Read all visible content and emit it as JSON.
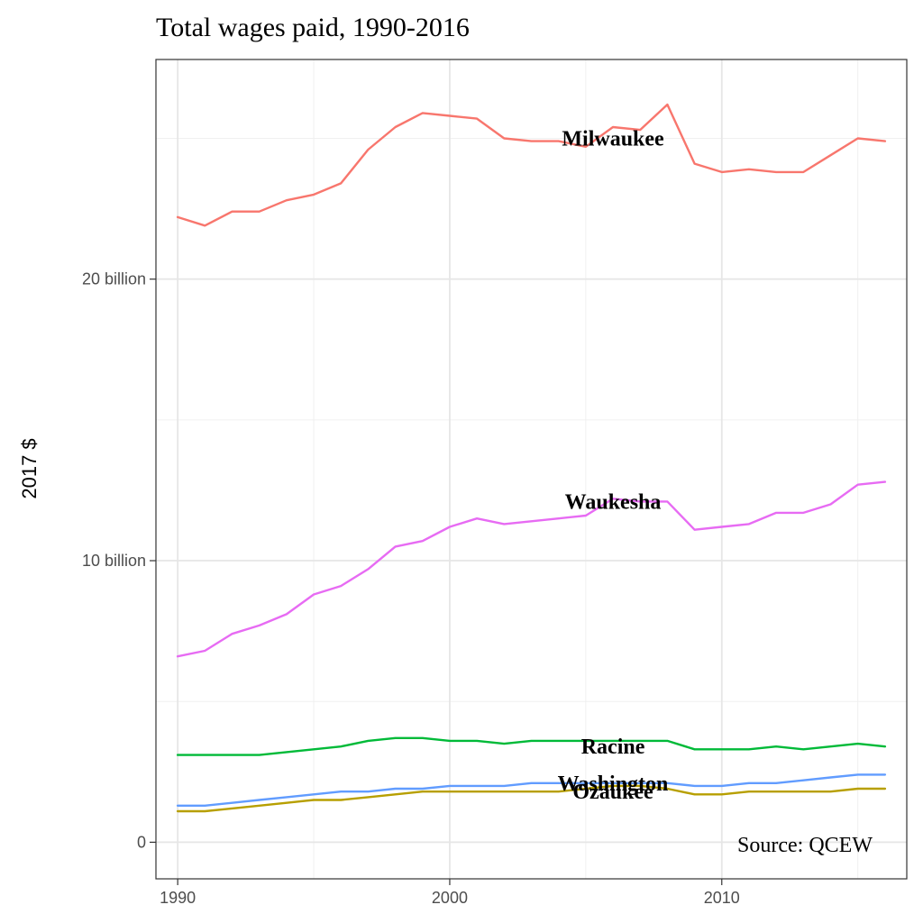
{
  "chart_data": {
    "type": "line",
    "title": "Total wages paid, 1990-2016",
    "xlabel": "",
    "ylabel": "2017 $",
    "xlim": [
      1989.2,
      2016.8
    ],
    "ylim": [
      -1.3,
      27.8
    ],
    "x_ticks": [
      1990,
      2000,
      2010
    ],
    "y_ticks": [
      {
        "value": 0,
        "label": "0"
      },
      {
        "value": 10,
        "label": "10 billion"
      },
      {
        "value": 20,
        "label": "20 billion"
      }
    ],
    "grid": true,
    "annotation": "Source: QCEW",
    "x": [
      1990,
      1991,
      1992,
      1993,
      1994,
      1995,
      1996,
      1997,
      1998,
      1999,
      2000,
      2001,
      2002,
      2003,
      2004,
      2005,
      2006,
      2007,
      2008,
      2009,
      2010,
      2011,
      2012,
      2013,
      2014,
      2015,
      2016
    ],
    "series": [
      {
        "name": "Milwaukee",
        "color": "#F8766D",
        "label_x": 2006,
        "label_y": 25.0,
        "values": [
          22.2,
          21.9,
          22.4,
          22.4,
          22.8,
          23.0,
          23.4,
          24.6,
          25.4,
          25.9,
          25.8,
          25.7,
          25.0,
          24.9,
          24.9,
          24.7,
          25.4,
          25.3,
          26.2,
          24.1,
          23.8,
          23.9,
          23.8,
          23.8,
          24.4,
          25.0,
          24.9
        ]
      },
      {
        "name": "Waukesha",
        "color": "#E76BF3",
        "label_x": 2006,
        "label_y": 12.1,
        "values": [
          6.6,
          6.8,
          7.4,
          7.7,
          8.1,
          8.8,
          9.1,
          9.7,
          10.5,
          10.7,
          11.2,
          11.5,
          11.3,
          11.4,
          11.5,
          11.6,
          12.2,
          12.1,
          12.1,
          11.1,
          11.2,
          11.3,
          11.7,
          11.7,
          12.0,
          12.7,
          12.8
        ]
      },
      {
        "name": "Racine",
        "color": "#00BA38",
        "label_x": 2006,
        "label_y": 3.4,
        "values": [
          3.1,
          3.1,
          3.1,
          3.1,
          3.2,
          3.3,
          3.4,
          3.6,
          3.7,
          3.7,
          3.6,
          3.6,
          3.5,
          3.6,
          3.6,
          3.6,
          3.6,
          3.6,
          3.6,
          3.3,
          3.3,
          3.3,
          3.4,
          3.3,
          3.4,
          3.5,
          3.4
        ]
      },
      {
        "name": "Washington",
        "color": "#619CFF",
        "label_x": 2006,
        "label_y": 2.1,
        "values": [
          1.3,
          1.3,
          1.4,
          1.5,
          1.6,
          1.7,
          1.8,
          1.8,
          1.9,
          1.9,
          2.0,
          2.0,
          2.0,
          2.1,
          2.1,
          2.1,
          2.1,
          2.1,
          2.1,
          2.0,
          2.0,
          2.1,
          2.1,
          2.2,
          2.3,
          2.4,
          2.4
        ]
      },
      {
        "name": "Ozaukee",
        "color": "#B79F00",
        "label_x": 2006,
        "label_y": 1.8,
        "values": [
          1.1,
          1.1,
          1.2,
          1.3,
          1.4,
          1.5,
          1.5,
          1.6,
          1.7,
          1.8,
          1.8,
          1.8,
          1.8,
          1.8,
          1.8,
          1.9,
          2.0,
          2.0,
          1.9,
          1.7,
          1.7,
          1.8,
          1.8,
          1.8,
          1.8,
          1.9,
          1.9
        ]
      }
    ]
  }
}
